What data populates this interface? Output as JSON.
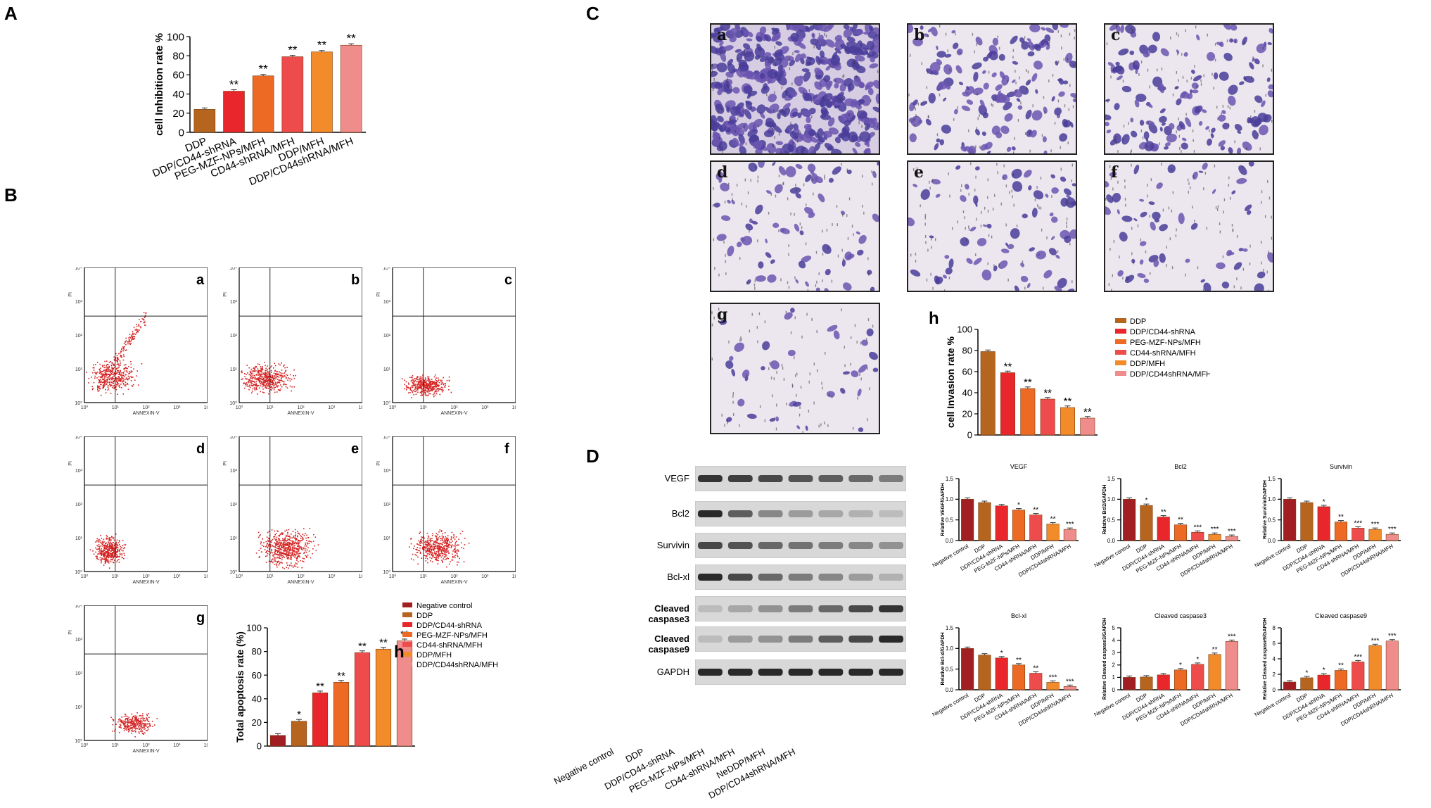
{
  "panels": {
    "A": "A",
    "B": "B",
    "C": "C",
    "D": "D"
  },
  "colors": {
    "ddp": "#b5651d",
    "ddp_cd44": "#e8262b",
    "peg": "#ec6a24",
    "cd44_mfh": "#ee4c4c",
    "ddp_mfh": "#f28b2a",
    "ddp_cd44_mfh": "#ef8c8c",
    "neg": "#a11f22",
    "dots": "#d42020"
  },
  "chart_A": {
    "type": "bar",
    "ylabel": "cell Inhibition rate %",
    "ylim": [
      0,
      100
    ],
    "yticks": [
      0,
      20,
      40,
      60,
      80,
      100
    ],
    "categories": [
      "DDP",
      "DDP/CD44-shRNA",
      "PEG-MZF-NPs/MFH",
      "CD44-shRNA/MFH",
      "DDP/MFH",
      "DDP/CD44shRNA/MFH"
    ],
    "values": [
      24,
      43,
      59,
      79,
      84,
      91
    ],
    "sig": [
      "",
      "**",
      "**",
      "**",
      "**",
      "**"
    ]
  },
  "flow": {
    "panels": [
      "a",
      "b",
      "c",
      "d",
      "e",
      "f",
      "g"
    ],
    "xlabel": "ANNEXIN-V",
    "ylabel": "PI",
    "ticks": [
      "10⁰",
      "10¹",
      "10²",
      "10³",
      "10⁴"
    ]
  },
  "chart_Bh": {
    "type": "bar",
    "label": "h",
    "ylabel": "Total apoptosis rate (%)",
    "ylim": [
      0,
      100
    ],
    "yticks": [
      0,
      20,
      40,
      60,
      80,
      100
    ],
    "legend": [
      "Negative control",
      "DDP",
      "DDP/CD44-shRNA",
      "PEG-MZF-NPs/MFH",
      "CD44-shRNA/MFH",
      "DDP/MFH",
      "DDP/CD44shRNA/MFH"
    ],
    "values": [
      9,
      21,
      45,
      54,
      79,
      82,
      89
    ],
    "sig": [
      "",
      "*",
      "**",
      "**",
      "**",
      "**",
      "**"
    ]
  },
  "micro": {
    "panels": [
      "a",
      "b",
      "c",
      "d",
      "e",
      "f",
      "g"
    ]
  },
  "chart_Ch": {
    "type": "bar",
    "label": "h",
    "ylabel": "cell Invasion rate %",
    "ylim": [
      0,
      100
    ],
    "yticks": [
      0,
      20,
      40,
      60,
      80,
      100
    ],
    "legend": [
      "DDP",
      "DDP/CD44-shRNA",
      "PEG-MZF-NPs/MFH",
      "CD44-shRNA/MFH",
      "DDP/MFH",
      "DDP/CD44shRNA/MFH"
    ],
    "values": [
      79,
      59,
      44,
      34,
      26,
      16
    ],
    "sig": [
      "",
      "**",
      "**",
      "**",
      "**",
      "**"
    ]
  },
  "western": {
    "proteins": [
      "VEGF",
      "Bcl2",
      "Survivin",
      "Bcl-xl",
      "Cleaved caspase3",
      "Cleaved caspase9",
      "GAPDH"
    ],
    "lanes": [
      "Negative control",
      "DDP",
      "DDP/CD44-shRNA",
      "PEG-MZF-NPs/MFH",
      "CD44-shRNA/MFH",
      "NeDDP/MFH",
      "DDP/CD44shRNA/MFH"
    ],
    "intensity": [
      [
        0.9,
        0.85,
        0.8,
        0.75,
        0.7,
        0.65,
        0.55
      ],
      [
        0.95,
        0.7,
        0.5,
        0.4,
        0.35,
        0.3,
        0.25
      ],
      [
        0.8,
        0.75,
        0.65,
        0.6,
        0.55,
        0.5,
        0.45
      ],
      [
        0.95,
        0.8,
        0.65,
        0.55,
        0.5,
        0.4,
        0.3
      ],
      [
        0.25,
        0.35,
        0.45,
        0.55,
        0.65,
        0.8,
        0.9
      ],
      [
        0.25,
        0.4,
        0.45,
        0.55,
        0.7,
        0.8,
        0.95
      ],
      [
        0.95,
        0.95,
        0.95,
        0.95,
        0.95,
        0.95,
        0.95
      ]
    ]
  },
  "d_categories": [
    "Negative control",
    "DDP",
    "DDP/CD44-shRNA",
    "PEG-MZF-NPs/MFH",
    "CD44-shRNA/MFH",
    "DDP/MFH",
    "DDP/CD44shRNA/MFH"
  ],
  "chart_D": [
    {
      "title": "VEGF",
      "ylabel": "Relative VEGF/GAPDH",
      "ylim": [
        0,
        1.5
      ],
      "yticks": [
        "0.0",
        "0.5",
        "1.0",
        "1.5"
      ],
      "values": [
        1.0,
        0.92,
        0.84,
        0.74,
        0.62,
        0.4,
        0.27
      ],
      "sig": [
        "",
        "",
        "",
        "*",
        "**",
        "**",
        "***"
      ]
    },
    {
      "title": "Bcl2",
      "ylabel": "Relative Bcl2/GAPDH",
      "ylim": [
        0,
        1.5
      ],
      "yticks": [
        "0.0",
        "0.5",
        "1.0",
        "1.5"
      ],
      "values": [
        1.0,
        0.85,
        0.57,
        0.38,
        0.2,
        0.15,
        0.1
      ],
      "sig": [
        "",
        "*",
        "**",
        "**",
        "***",
        "***",
        "***"
      ]
    },
    {
      "title": "Survivin",
      "ylabel": "Relative Survivin/GAPDH",
      "ylim": [
        0,
        1.5
      ],
      "yticks": [
        "0.0",
        "0.5",
        "1.0",
        "1.5"
      ],
      "values": [
        1.0,
        0.92,
        0.82,
        0.45,
        0.3,
        0.27,
        0.15
      ],
      "sig": [
        "",
        "",
        "*",
        "**",
        "***",
        "***",
        "***"
      ]
    },
    {
      "title": "Bcl-xl",
      "ylabel": "Relative Bcl-xl/GAPDH",
      "ylim": [
        0,
        1.5
      ],
      "yticks": [
        "0.0",
        "0.5",
        "1.0",
        "1.5"
      ],
      "values": [
        1.0,
        0.84,
        0.77,
        0.6,
        0.4,
        0.18,
        0.08
      ],
      "sig": [
        "",
        "",
        "*",
        "**",
        "**",
        "***",
        "***"
      ]
    },
    {
      "title": "Cleaved caspase3",
      "ylabel": "Relative Cleaved caspase3/GAPDH",
      "ylim": [
        0,
        5
      ],
      "yticks": [
        "0",
        "1",
        "2",
        "3",
        "4",
        "5"
      ],
      "values": [
        1.0,
        1.03,
        1.2,
        1.6,
        2.05,
        2.85,
        3.9
      ],
      "sig": [
        "",
        "",
        "",
        "*",
        "*",
        "**",
        "***"
      ]
    },
    {
      "title": "Cleaved caspase9",
      "ylabel": "Relative Cleaved caspase9/GAPDH",
      "ylim": [
        0,
        8
      ],
      "yticks": [
        "0",
        "2",
        "4",
        "6",
        "8"
      ],
      "values": [
        1.0,
        1.55,
        1.9,
        2.5,
        3.6,
        5.7,
        6.3
      ],
      "sig": [
        "",
        "*",
        "*",
        "**",
        "***",
        "***",
        "***"
      ]
    }
  ]
}
